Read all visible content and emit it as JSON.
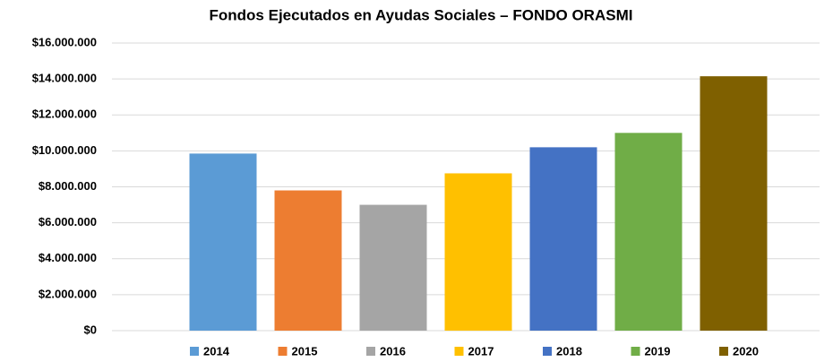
{
  "chart_data": {
    "type": "bar",
    "title": "Fondos Ejecutados en Ayudas Sociales – FONDO ORASMI",
    "series": [
      {
        "name": "2014",
        "color": "#5b9bd5",
        "values": [
          9850000
        ]
      },
      {
        "name": "2015",
        "color": "#ed7d31",
        "values": [
          7800000
        ]
      },
      {
        "name": "2016",
        "color": "#a5a5a5",
        "values": [
          7000000
        ]
      },
      {
        "name": "2017",
        "color": "#ffc000",
        "values": [
          8750000
        ]
      },
      {
        "name": "2018",
        "color": "#4472c4",
        "values": [
          10200000
        ]
      },
      {
        "name": "2019",
        "color": "#70ad47",
        "values": [
          11000000
        ]
      },
      {
        "name": "2020",
        "color": "#7f6000",
        "values": [
          14150000
        ]
      }
    ],
    "ylim": [
      0,
      16000000
    ],
    "yticks": [
      {
        "value": 0,
        "label": "$0"
      },
      {
        "value": 2000000,
        "label": "$2.000.000"
      },
      {
        "value": 4000000,
        "label": "$4.000.000"
      },
      {
        "value": 6000000,
        "label": "$6.000.000"
      },
      {
        "value": 8000000,
        "label": "$8.000.000"
      },
      {
        "value": 10000000,
        "label": "$10.000.000"
      },
      {
        "value": 12000000,
        "label": "$12.000.000"
      },
      {
        "value": 14000000,
        "label": "$14.000.000"
      },
      {
        "value": 16000000,
        "label": "$16.000.000"
      }
    ],
    "grid": true,
    "legend": "bottom"
  }
}
